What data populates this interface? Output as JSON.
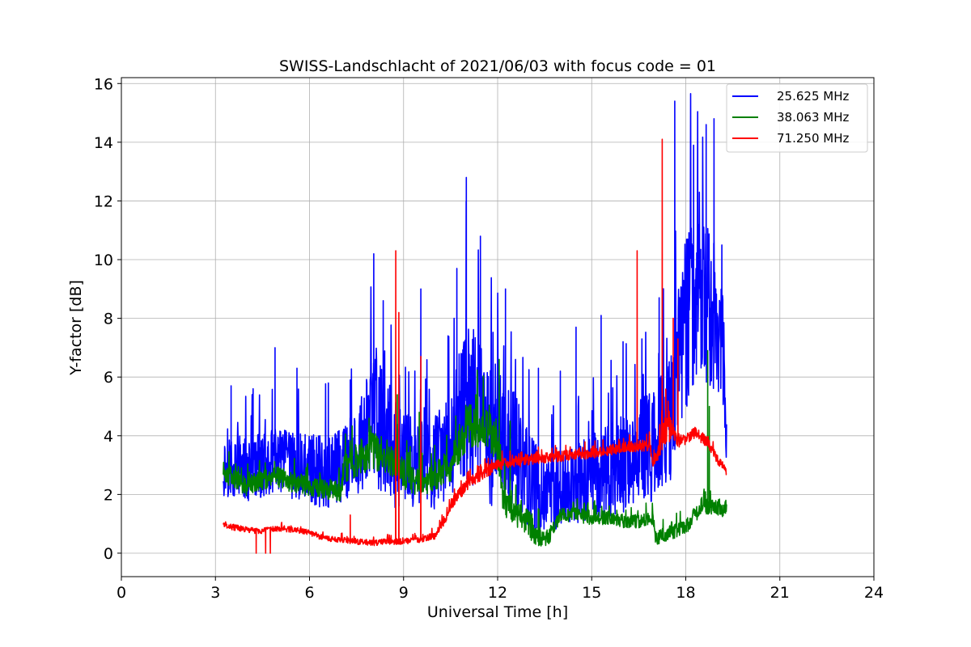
{
  "chart_data": {
    "type": "line",
    "title": "SWISS-Landschlacht of 2021/06/03 with focus code = 01",
    "xlabel": "Universal Time [h]",
    "ylabel": "Y-factor [dB]",
    "xlim": [
      0,
      24
    ],
    "ylim": [
      -0.8,
      16.2
    ],
    "xticks": [
      "0",
      "3",
      "6",
      "9",
      "12",
      "15",
      "18",
      "21",
      "24"
    ],
    "yticks": [
      "0",
      "2",
      "4",
      "6",
      "8",
      "10",
      "12",
      "14",
      "16"
    ],
    "grid": true,
    "legend_position": "top-right",
    "series": [
      {
        "name": "25.625 MHz",
        "color": "#0000ff",
        "x": [
          3.25,
          3.5,
          4.0,
          4.5,
          5.0,
          5.5,
          6.0,
          6.5,
          7.0,
          7.5,
          7.9,
          8.1,
          8.5,
          8.8,
          9.0,
          9.5,
          10.0,
          10.5,
          10.8,
          11.0,
          11.3,
          11.7,
          12.0,
          12.5,
          13.0,
          13.5,
          14.0,
          14.5,
          15.0,
          15.5,
          16.0,
          16.5,
          17.0,
          17.5,
          17.8,
          18.0,
          18.3,
          18.6,
          18.9,
          19.2,
          19.3
        ],
        "center": [
          2.9,
          3.0,
          2.8,
          3.0,
          3.1,
          3.0,
          2.9,
          2.8,
          3.0,
          3.5,
          4.2,
          4.5,
          4.0,
          3.2,
          3.3,
          3.0,
          3.1,
          3.6,
          4.5,
          5.2,
          5.0,
          4.2,
          4.0,
          3.6,
          2.5,
          2.0,
          2.0,
          2.3,
          2.6,
          2.8,
          3.0,
          3.5,
          3.6,
          4.6,
          6.5,
          8.0,
          8.8,
          8.6,
          8.2,
          7.0,
          3.2
        ],
        "spread": [
          1.0,
          1.1,
          1.1,
          1.1,
          1.2,
          1.2,
          1.2,
          1.3,
          1.4,
          1.5,
          2.0,
          2.6,
          2.0,
          1.8,
          1.6,
          1.5,
          1.6,
          2.0,
          2.5,
          3.0,
          2.8,
          2.6,
          2.6,
          2.2,
          1.8,
          1.3,
          1.3,
          1.4,
          1.5,
          1.6,
          1.7,
          1.8,
          1.9,
          2.2,
          2.8,
          3.2,
          3.0,
          2.8,
          2.6,
          2.2,
          0.6
        ],
        "spikes": [
          [
            3.5,
            5.7
          ],
          [
            4.2,
            5.6
          ],
          [
            4.9,
            7.0
          ],
          [
            5.6,
            6.3
          ],
          [
            6.6,
            5.8
          ],
          [
            7.3,
            5.9
          ],
          [
            8.05,
            10.2
          ],
          [
            8.35,
            8.6
          ],
          [
            9.55,
            9.0
          ],
          [
            10.7,
            9.7
          ],
          [
            11.0,
            12.8
          ],
          [
            11.45,
            10.8
          ],
          [
            12.25,
            9.0
          ],
          [
            13.3,
            6.3
          ],
          [
            14.0,
            6.2
          ],
          [
            14.5,
            7.7
          ],
          [
            15.3,
            8.1
          ],
          [
            16.0,
            7.2
          ],
          [
            16.6,
            7.3
          ],
          [
            17.15,
            8.7
          ],
          [
            17.65,
            15.4
          ],
          [
            18.25,
            13.9
          ],
          [
            18.65,
            14.6
          ],
          [
            18.9,
            14.8
          ],
          [
            19.15,
            10.5
          ]
        ],
        "minimum": 0.0
      },
      {
        "name": "38.063 MHz",
        "color": "#008000",
        "x": [
          3.25,
          3.5,
          4.0,
          4.5,
          5.0,
          5.5,
          6.0,
          6.5,
          7.0,
          7.1,
          7.5,
          8.0,
          8.5,
          8.8,
          9.0,
          9.5,
          10.0,
          10.5,
          10.8,
          11.0,
          11.3,
          11.7,
          12.0,
          12.2,
          12.5,
          13.0,
          13.3,
          13.6,
          14.0,
          14.5,
          15.0,
          15.5,
          16.0,
          16.5,
          16.95,
          17.05,
          17.5,
          18.0,
          18.5,
          18.7,
          19.0,
          19.3
        ],
        "center": [
          2.8,
          2.6,
          2.3,
          2.5,
          2.6,
          2.4,
          2.3,
          2.2,
          2.1,
          2.9,
          3.2,
          3.5,
          3.3,
          3.0,
          2.7,
          2.4,
          2.6,
          3.0,
          3.8,
          4.3,
          4.4,
          4.2,
          3.6,
          1.8,
          1.4,
          1.0,
          0.6,
          0.5,
          1.3,
          1.3,
          1.2,
          1.2,
          1.1,
          1.1,
          1.2,
          0.5,
          0.7,
          0.9,
          1.6,
          1.6,
          1.6,
          1.5
        ],
        "spread": [
          0.35,
          0.35,
          0.35,
          0.35,
          0.35,
          0.35,
          0.35,
          0.35,
          0.35,
          0.5,
          0.6,
          0.7,
          0.6,
          0.5,
          0.5,
          0.5,
          0.5,
          0.6,
          0.7,
          0.8,
          0.8,
          0.7,
          0.7,
          0.6,
          0.4,
          0.5,
          0.4,
          0.3,
          0.25,
          0.25,
          0.25,
          0.25,
          0.25,
          0.25,
          0.25,
          0.25,
          0.25,
          0.25,
          0.3,
          0.3,
          0.3,
          0.3
        ],
        "spikes": [
          [
            7.9,
            4.6
          ],
          [
            8.8,
            5.4
          ],
          [
            9.5,
            4.8
          ],
          [
            11.3,
            5.4
          ],
          [
            12.05,
            6.6
          ],
          [
            12.4,
            4.5
          ],
          [
            18.7,
            6.9
          ],
          [
            18.75,
            5.0
          ]
        ],
        "minimum": 0.0
      },
      {
        "name": "71.250 MHz",
        "color": "#ff0000",
        "x": [
          3.25,
          3.5,
          4.0,
          4.5,
          5.0,
          5.5,
          6.0,
          6.5,
          7.0,
          7.5,
          8.0,
          8.5,
          9.0,
          9.5,
          10.0,
          10.3,
          10.6,
          11.0,
          11.5,
          12.0,
          12.5,
          13.0,
          13.5,
          14.0,
          14.5,
          15.0,
          15.5,
          16.0,
          16.5,
          16.85,
          16.95,
          17.1,
          17.4,
          17.7,
          18.0,
          18.3,
          18.7,
          19.0,
          19.3
        ],
        "center": [
          1.0,
          0.9,
          0.8,
          0.75,
          0.85,
          0.8,
          0.7,
          0.5,
          0.45,
          0.4,
          0.35,
          0.4,
          0.4,
          0.45,
          0.6,
          1.1,
          1.8,
          2.3,
          2.7,
          3.0,
          3.1,
          3.2,
          3.25,
          3.3,
          3.35,
          3.4,
          3.5,
          3.6,
          3.65,
          3.7,
          3.0,
          3.4,
          4.6,
          3.8,
          3.9,
          4.1,
          3.8,
          3.2,
          2.8
        ],
        "spread": [
          0.1,
          0.1,
          0.1,
          0.1,
          0.1,
          0.1,
          0.1,
          0.1,
          0.1,
          0.1,
          0.1,
          0.1,
          0.1,
          0.1,
          0.12,
          0.15,
          0.18,
          0.2,
          0.2,
          0.2,
          0.2,
          0.2,
          0.2,
          0.18,
          0.18,
          0.18,
          0.18,
          0.18,
          0.2,
          0.2,
          0.2,
          0.3,
          0.8,
          0.3,
          0.2,
          0.2,
          0.2,
          0.15,
          0.15
        ],
        "spikes": [
          [
            8.75,
            10.3
          ],
          [
            8.85,
            8.2
          ],
          [
            9.55,
            6.7
          ],
          [
            16.45,
            10.3
          ],
          [
            17.25,
            14.1
          ],
          [
            17.6,
            8.0
          ],
          [
            17.75,
            7.3
          ],
          [
            7.3,
            1.3
          ]
        ],
        "dips": [
          [
            4.3,
            0.0
          ],
          [
            4.6,
            0.0
          ],
          [
            4.75,
            0.0
          ],
          [
            8.7,
            0.3
          ]
        ],
        "minimum": 0.0
      }
    ]
  }
}
